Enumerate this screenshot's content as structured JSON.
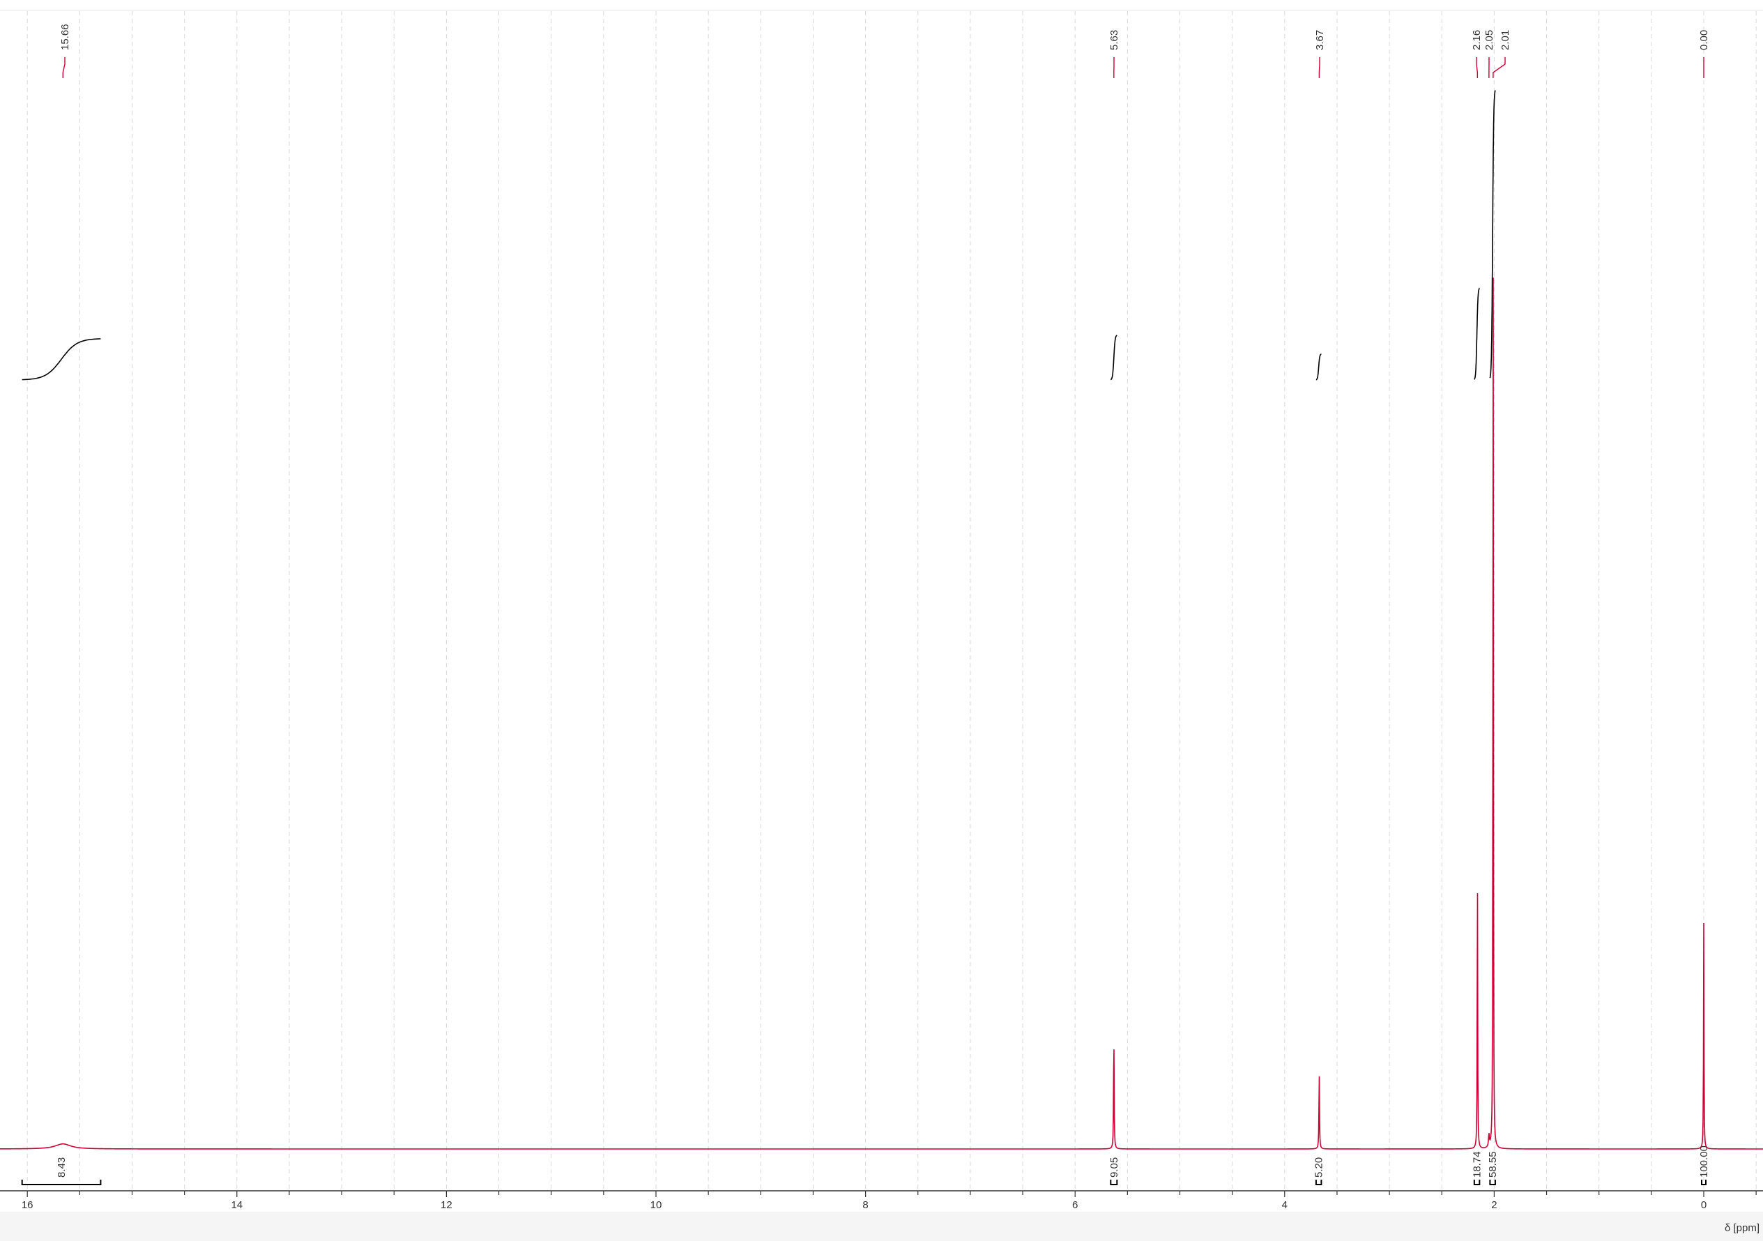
{
  "chart_data": {
    "type": "line",
    "title": "",
    "xlabel": "δ [ppm]",
    "ylabel": "",
    "x_reversed": true,
    "xlim": [
      16.2,
      -0.5
    ],
    "x_ticks": [
      16,
      14,
      12,
      10,
      8,
      6,
      4,
      2,
      0
    ],
    "x_tick_labels": [
      "16",
      "14",
      "12",
      "10",
      "8",
      "6",
      "4",
      "2",
      "0"
    ],
    "grid": "vertical dashed",
    "colors": {
      "spectrum": "#cc0033",
      "integral": "#000000",
      "grid": "#d8d8d8",
      "axis": "#333333"
    },
    "series": [
      {
        "peaks": [
          {
            "ppm": 15.66,
            "height": 0.005,
            "width": 0.18
          },
          {
            "ppm": 5.63,
            "height": 0.115,
            "width": 0.006
          },
          {
            "ppm": 3.67,
            "height": 0.075,
            "width": 0.006
          },
          {
            "ppm": 2.16,
            "height": 0.29,
            "width": 0.005
          },
          {
            "ppm": 2.05,
            "height": 0.012,
            "width": 0.01
          },
          {
            "ppm": 2.01,
            "height": 0.92,
            "width": 0.005
          },
          {
            "ppm": 0.0,
            "height": 0.222,
            "width": 0.005
          }
        ]
      }
    ],
    "peak_labels": [
      {
        "text": "15.66",
        "ppm": 15.66
      },
      {
        "text": "5.63",
        "ppm": 5.63
      },
      {
        "text": "3.67",
        "ppm": 3.67
      },
      {
        "text": "2.16",
        "ppm": 2.16
      },
      {
        "text": "2.05",
        "ppm": 2.05
      },
      {
        "text": "2.01",
        "ppm": 2.01
      },
      {
        "text": "0.00",
        "ppm": 0.0
      }
    ],
    "integrals": [
      {
        "from": 16.05,
        "to": 15.3,
        "value": "8.43",
        "rise": 0.035
      },
      {
        "from": 5.66,
        "to": 5.6,
        "value": "9.05",
        "rise": 0.038
      },
      {
        "from": 3.7,
        "to": 3.65,
        "value": "5.20",
        "rise": 0.022
      },
      {
        "from": 2.19,
        "to": 2.14,
        "value": "18.74",
        "rise": 0.078
      },
      {
        "from": 2.04,
        "to": 1.99,
        "value": "58.55",
        "rise": 0.246
      },
      {
        "from": 0.02,
        "to": -0.02,
        "value": "100.00",
        "rise": 0.0
      }
    ]
  }
}
